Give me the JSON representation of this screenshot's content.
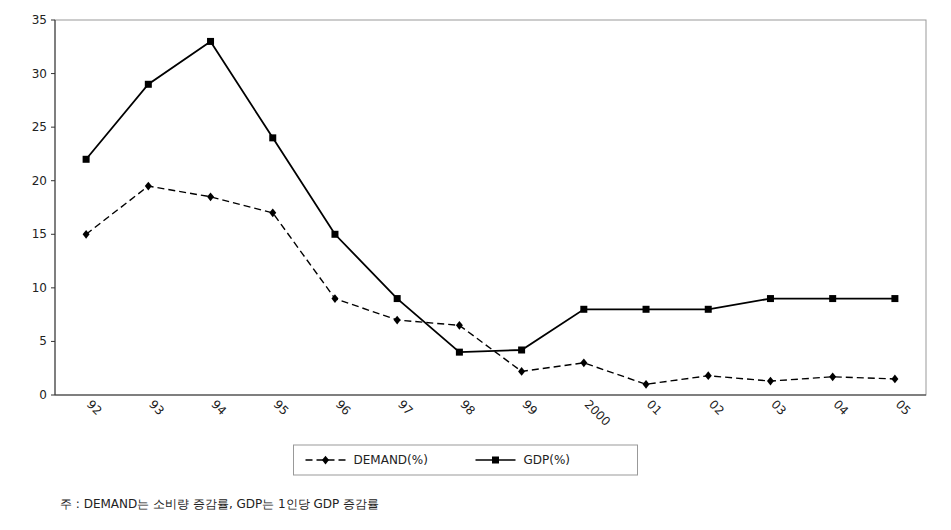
{
  "chart_data": {
    "type": "line",
    "categories": [
      "92",
      "93",
      "94",
      "95",
      "96",
      "97",
      "98",
      "99",
      "2000",
      "01",
      "02",
      "03",
      "04",
      "05"
    ],
    "series": [
      {
        "name": "DEMAND(%)",
        "color": "#000000",
        "marker": "diamond",
        "line_style": "dashed",
        "values": [
          15.0,
          19.5,
          18.5,
          17.0,
          9.0,
          7.0,
          6.5,
          2.2,
          3.0,
          1.0,
          1.8,
          1.3,
          1.7,
          1.5
        ]
      },
      {
        "name": "GDP(%)",
        "color": "#000000",
        "marker": "square",
        "line_style": "solid",
        "values": [
          22.0,
          29.0,
          33.0,
          24.0,
          15.0,
          9.0,
          4.0,
          4.2,
          8.0,
          8.0,
          8.0,
          9.0,
          9.0,
          9.0
        ]
      }
    ],
    "ylim": [
      0,
      35
    ],
    "yticks": [
      0,
      5,
      10,
      15,
      20,
      25,
      30,
      35
    ],
    "grid": false,
    "legend": "bottom",
    "annotations": [
      "주 : DEMAND는 소비량 증감률, GDP는 1인당 GDP 증감률"
    ]
  }
}
